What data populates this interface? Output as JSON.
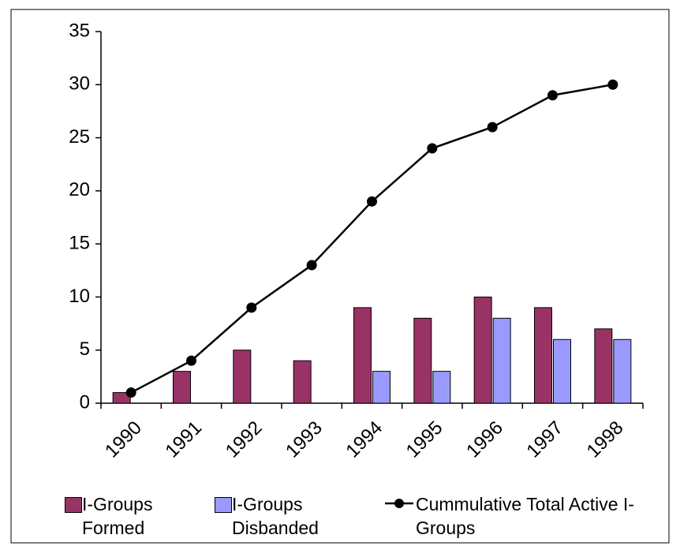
{
  "chart_data": {
    "type": "bar_line",
    "categories": [
      "1990",
      "1991",
      "1992",
      "1993",
      "1994",
      "1995",
      "1996",
      "1997",
      "1998"
    ],
    "series": [
      {
        "name": "I-Groups Formed",
        "color": "#993366",
        "type": "bar",
        "values": [
          1,
          3,
          5,
          4,
          9,
          8,
          10,
          9,
          7
        ]
      },
      {
        "name": "I-Groups Disbanded",
        "color": "#9999ff",
        "type": "bar",
        "values": [
          0,
          0,
          0,
          0,
          3,
          3,
          8,
          6,
          6
        ]
      },
      {
        "name": "Cummulative Total Active I- Groups",
        "color": "#000000",
        "type": "line",
        "values": [
          1,
          4,
          9,
          13,
          19,
          24,
          26,
          29,
          30
        ]
      }
    ],
    "ylim": [
      0,
      35
    ],
    "yticks": [
      0,
      5,
      10,
      15,
      20,
      25,
      30,
      35
    ]
  }
}
